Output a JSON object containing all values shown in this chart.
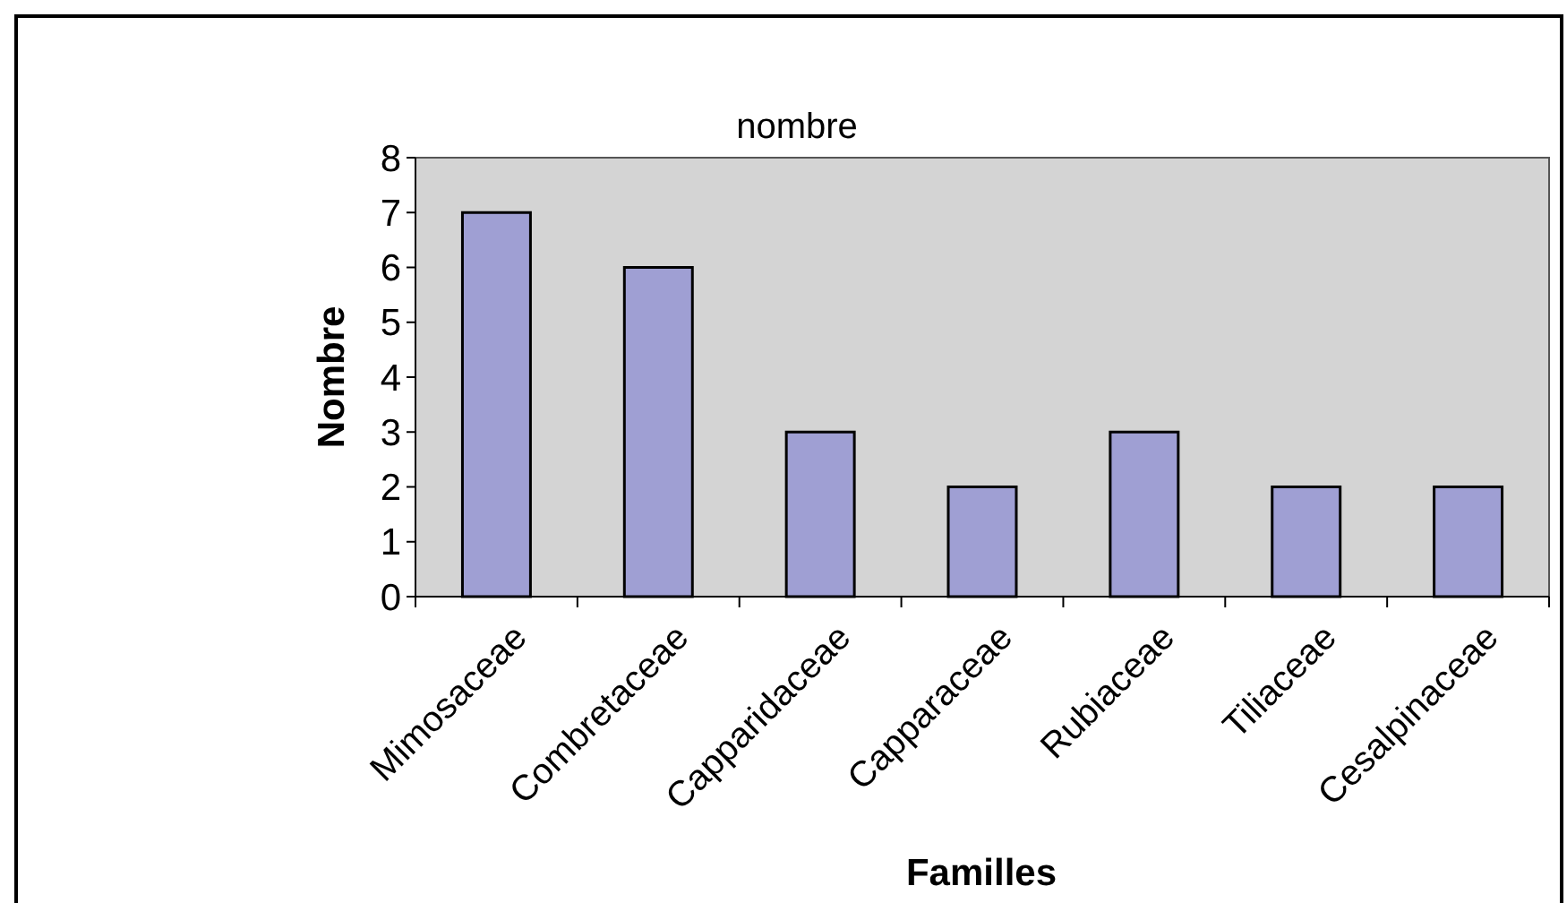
{
  "chart_data": {
    "type": "bar",
    "title": "nombre",
    "xlabel": "Familles",
    "ylabel": "Nombre",
    "categories": [
      "Mimosaceae",
      "Combretaceae",
      "Capparidaceae",
      "Capparaceae",
      "Rubiaceae",
      "Tiliaceae",
      "Cesalpinaceae"
    ],
    "values": [
      7,
      6,
      3,
      2,
      3,
      2,
      2
    ],
    "color": "#9f9fd3",
    "ylim": [
      0,
      8
    ],
    "yticks": [
      0,
      1,
      2,
      3,
      4,
      5,
      6,
      7,
      8
    ],
    "grid": false
  }
}
